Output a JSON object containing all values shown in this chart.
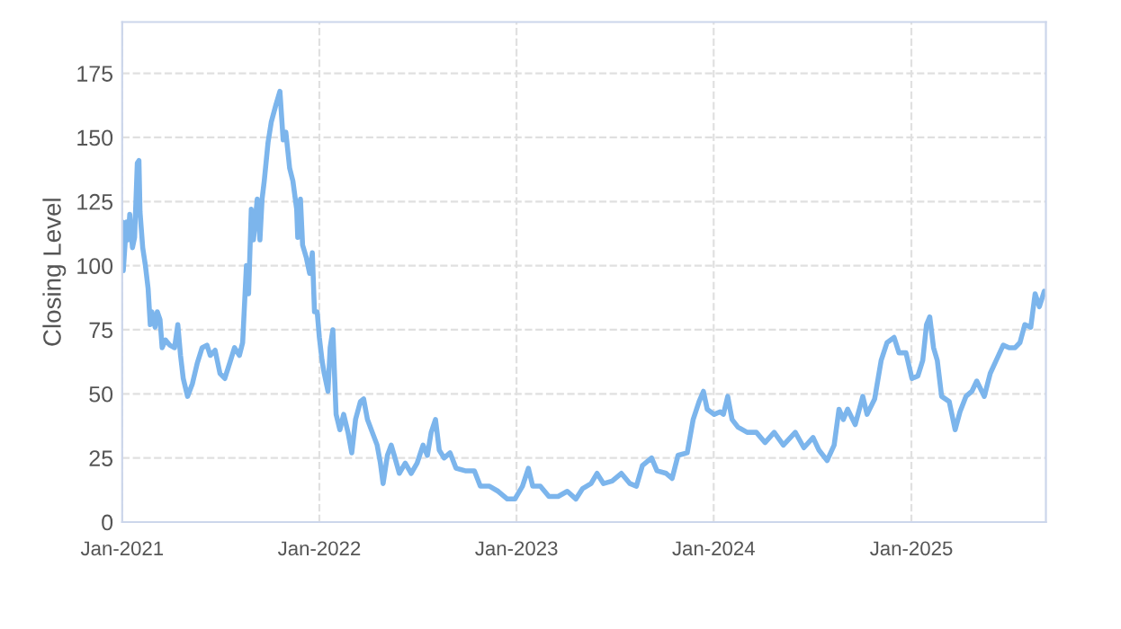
{
  "chart_data": {
    "type": "line",
    "ylabel": "Closing Level",
    "xlim": [
      "2021-01-01",
      "2025-09-07"
    ],
    "ylim": [
      0,
      195
    ],
    "xticks": [
      {
        "value": "2021-01-01",
        "label": "Jan-2021"
      },
      {
        "value": "2022-01-01",
        "label": "Jan-2022"
      },
      {
        "value": "2023-01-01",
        "label": "Jan-2023"
      },
      {
        "value": "2024-01-01",
        "label": "Jan-2024"
      },
      {
        "value": "2025-01-01",
        "label": "Jan-2025"
      }
    ],
    "yticks": [
      0,
      25,
      50,
      75,
      100,
      125,
      150,
      175
    ],
    "grid": true,
    "line_style": "solid",
    "marker": "none",
    "x": [
      "2021-01-01",
      "2021-01-03",
      "2021-01-09",
      "2021-01-12",
      "2021-01-15",
      "2021-01-20",
      "2021-01-24",
      "2021-01-29",
      "2021-02-01",
      "2021-02-03",
      "2021-02-08",
      "2021-02-13",
      "2021-02-18",
      "2021-02-22",
      "2021-02-25",
      "2021-03-03",
      "2021-03-07",
      "2021-03-12",
      "2021-03-16",
      "2021-03-22",
      "2021-03-30",
      "2021-04-08",
      "2021-04-14",
      "2021-04-19",
      "2021-04-24",
      "2021-05-02",
      "2021-05-11",
      "2021-05-20",
      "2021-05-29",
      "2021-06-07",
      "2021-06-13",
      "2021-06-22",
      "2021-07-01",
      "2021-07-10",
      "2021-07-19",
      "2021-07-28",
      "2021-08-06",
      "2021-08-12",
      "2021-08-19",
      "2021-08-23",
      "2021-08-28",
      "2021-09-01",
      "2021-09-08",
      "2021-09-13",
      "2021-09-17",
      "2021-09-21",
      "2021-09-28",
      "2021-10-04",
      "2021-10-13",
      "2021-10-20",
      "2021-10-26",
      "2021-10-31",
      "2021-11-07",
      "2021-11-13",
      "2021-11-20",
      "2021-11-22",
      "2021-11-27",
      "2021-12-01",
      "2021-12-08",
      "2021-12-14",
      "2021-12-19",
      "2021-12-23",
      "2021-12-28",
      "2022-01-01",
      "2022-01-06",
      "2022-01-10",
      "2022-01-17",
      "2022-01-21",
      "2022-01-26",
      "2022-01-29",
      "2022-02-01",
      "2022-02-08",
      "2022-02-15",
      "2022-02-23",
      "2022-03-02",
      "2022-03-09",
      "2022-03-18",
      "2022-03-24",
      "2022-03-31",
      "2022-04-09",
      "2022-04-18",
      "2022-04-24",
      "2022-04-29",
      "2022-05-07",
      "2022-05-14",
      "2022-05-21",
      "2022-05-29",
      "2022-06-09",
      "2022-06-20",
      "2022-07-01",
      "2022-07-12",
      "2022-07-20",
      "2022-07-27",
      "2022-08-04",
      "2022-08-11",
      "2022-08-20",
      "2022-08-31",
      "2022-09-11",
      "2022-09-28",
      "2022-10-15",
      "2022-10-26",
      "2022-11-12",
      "2022-11-28",
      "2022-12-15",
      "2022-12-29",
      "2023-01-12",
      "2023-01-23",
      "2023-01-31",
      "2023-02-14",
      "2023-03-02",
      "2023-03-19",
      "2023-04-05",
      "2023-04-21",
      "2023-05-03",
      "2023-05-19",
      "2023-05-30",
      "2023-06-11",
      "2023-06-27",
      "2023-07-14",
      "2023-07-30",
      "2023-08-11",
      "2023-08-22",
      "2023-09-08",
      "2023-09-18",
      "2023-10-05",
      "2023-10-16",
      "2023-10-27",
      "2023-11-13",
      "2023-11-24",
      "2023-12-05",
      "2023-12-13",
      "2023-12-20",
      "2024-01-02",
      "2024-01-13",
      "2024-01-19",
      "2024-01-27",
      "2024-02-04",
      "2024-02-15",
      "2024-03-03",
      "2024-03-20",
      "2024-04-05",
      "2024-04-22",
      "2024-05-09",
      "2024-05-31",
      "2024-06-16",
      "2024-07-03",
      "2024-07-14",
      "2024-07-29",
      "2024-08-11",
      "2024-08-20",
      "2024-08-28",
      "2024-09-05",
      "2024-09-19",
      "2024-10-03",
      "2024-10-11",
      "2024-10-25",
      "2024-11-06",
      "2024-11-17",
      "2024-11-30",
      "2024-12-09",
      "2024-12-22",
      "2025-01-02",
      "2025-01-13",
      "2025-01-22",
      "2025-01-29",
      "2025-02-04",
      "2025-02-11",
      "2025-02-18",
      "2025-02-26",
      "2025-03-12",
      "2025-03-23",
      "2025-04-01",
      "2025-04-12",
      "2025-04-23",
      "2025-05-02",
      "2025-05-16",
      "2025-05-27",
      "2025-06-07",
      "2025-06-20",
      "2025-07-01",
      "2025-07-12",
      "2025-07-21",
      "2025-07-30",
      "2025-08-10",
      "2025-08-18",
      "2025-08-26",
      "2025-09-04",
      "2025-09-07"
    ],
    "series": [
      {
        "color": "#7cb5ec",
        "values": [
          117,
          98,
          117,
          110,
          120,
          107,
          111,
          140,
          141,
          121,
          107,
          100,
          91,
          77,
          82,
          76,
          82,
          79,
          68,
          71,
          69,
          68,
          77,
          65,
          56,
          49,
          54,
          62,
          68,
          69,
          65,
          67,
          58,
          56,
          62,
          68,
          65,
          70,
          100,
          89,
          122,
          110,
          126,
          110,
          126,
          133,
          148,
          156,
          163,
          168,
          149,
          152,
          138,
          133,
          122,
          111,
          126,
          108,
          103,
          97,
          105,
          82,
          82,
          72,
          63,
          58,
          51,
          68,
          75,
          58,
          42,
          36,
          42,
          35,
          27,
          40,
          47,
          48,
          40,
          35,
          30,
          23,
          15,
          26,
          30,
          25,
          19,
          23,
          19,
          23,
          30,
          26,
          35,
          40,
          28,
          25,
          27,
          21,
          20,
          20,
          14,
          14,
          12,
          9,
          9,
          14,
          21,
          14,
          14,
          10,
          10,
          12,
          9,
          13,
          15,
          19,
          15,
          16,
          19,
          15,
          14,
          22,
          25,
          20,
          19,
          17,
          26,
          27,
          40,
          47,
          51,
          44,
          42,
          43,
          42,
          49,
          40,
          37,
          35,
          35,
          31,
          35,
          30,
          35,
          29,
          33,
          28,
          24,
          30,
          44,
          40,
          44,
          38,
          49,
          42,
          48,
          63,
          70,
          72,
          66,
          66,
          56,
          57,
          63,
          77,
          80,
          68,
          63,
          49,
          47,
          36,
          43,
          49,
          51,
          55,
          49,
          58,
          63,
          69,
          68,
          68,
          70,
          77,
          76,
          89,
          84,
          90,
          89
        ]
      }
    ]
  }
}
